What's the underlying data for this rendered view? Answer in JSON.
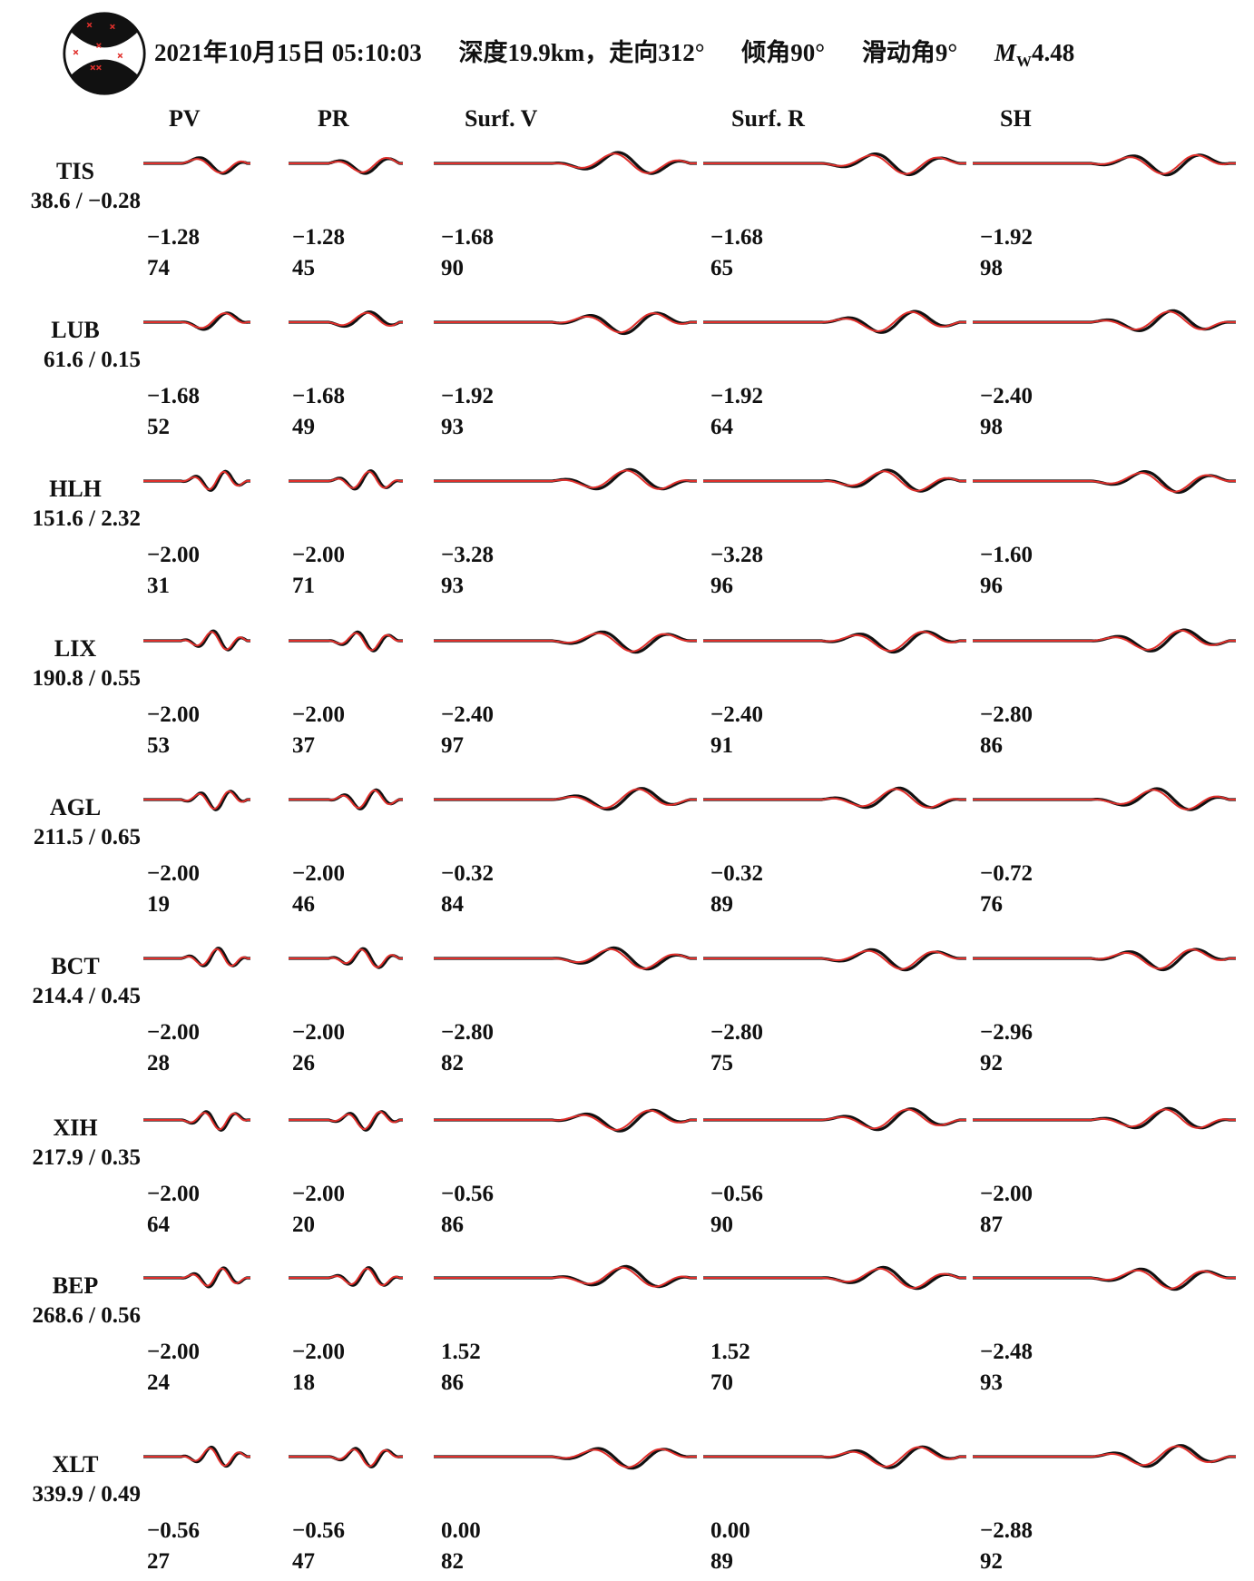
{
  "header": {
    "datetime": "2021年10月15日 05:10:03",
    "depth": "深度19.9km，走向312°",
    "dip": "倾角90°",
    "rake": "滑动角9°",
    "mw_symbol": "M",
    "mw_sub": "W",
    "mw_value": "4.48"
  },
  "columns": [
    "PV",
    "PR",
    "Surf. V",
    "Surf. R",
    "SH"
  ],
  "colors": {
    "observed": "#111111",
    "synthetic": "#e0302c",
    "beachball_dark": "#111111",
    "beachball_marker": "#e0302c"
  },
  "stations": [
    {
      "name": "TIS",
      "dist": "38.6 / −0.28",
      "shift": [
        "−1.28",
        "−1.28",
        "−1.68",
        "−1.68",
        "−1.92"
      ],
      "corr": [
        "74",
        "45",
        "90",
        "65",
        "98"
      ]
    },
    {
      "name": "LUB",
      "dist": "61.6 / 0.15",
      "shift": [
        "−1.68",
        "−1.68",
        "−1.92",
        "−1.92",
        "−2.40"
      ],
      "corr": [
        "52",
        "49",
        "93",
        "64",
        "98"
      ]
    },
    {
      "name": "HLH",
      "dist": "151.6 / 2.32",
      "shift": [
        "−2.00",
        "−2.00",
        "−3.28",
        "−3.28",
        "−1.60"
      ],
      "corr": [
        "31",
        "71",
        "93",
        "96",
        "96"
      ]
    },
    {
      "name": "LIX",
      "dist": "190.8 / 0.55",
      "shift": [
        "−2.00",
        "−2.00",
        "−2.40",
        "−2.40",
        "−2.80"
      ],
      "corr": [
        "53",
        "37",
        "97",
        "91",
        "86"
      ]
    },
    {
      "name": "AGL",
      "dist": "211.5 / 0.65",
      "shift": [
        "−2.00",
        "−2.00",
        "−0.32",
        "−0.32",
        "−0.72"
      ],
      "corr": [
        "19",
        "46",
        "84",
        "89",
        "76"
      ]
    },
    {
      "name": "BCT",
      "dist": "214.4 / 0.45",
      "shift": [
        "−2.00",
        "−2.00",
        "−2.80",
        "−2.80",
        "−2.96"
      ],
      "corr": [
        "28",
        "26",
        "82",
        "75",
        "92"
      ]
    },
    {
      "name": "XIH",
      "dist": "217.9 / 0.35",
      "shift": [
        "−2.00",
        "−2.00",
        "−0.56",
        "−0.56",
        "−2.00"
      ],
      "corr": [
        "64",
        "20",
        "86",
        "90",
        "87"
      ]
    },
    {
      "name": "BEP",
      "dist": "268.6 / 0.56",
      "shift": [
        "−2.00",
        "−2.00",
        "1.52",
        "1.52",
        "−2.48"
      ],
      "corr": [
        "24",
        "18",
        "86",
        "70",
        "93"
      ]
    },
    {
      "name": "XLT",
      "dist": "339.9 / 0.49",
      "shift": [
        "−0.56",
        "−0.56",
        "0.00",
        "0.00",
        "−2.88"
      ],
      "corr": [
        "27",
        "47",
        "82",
        "89",
        "92"
      ]
    }
  ]
}
